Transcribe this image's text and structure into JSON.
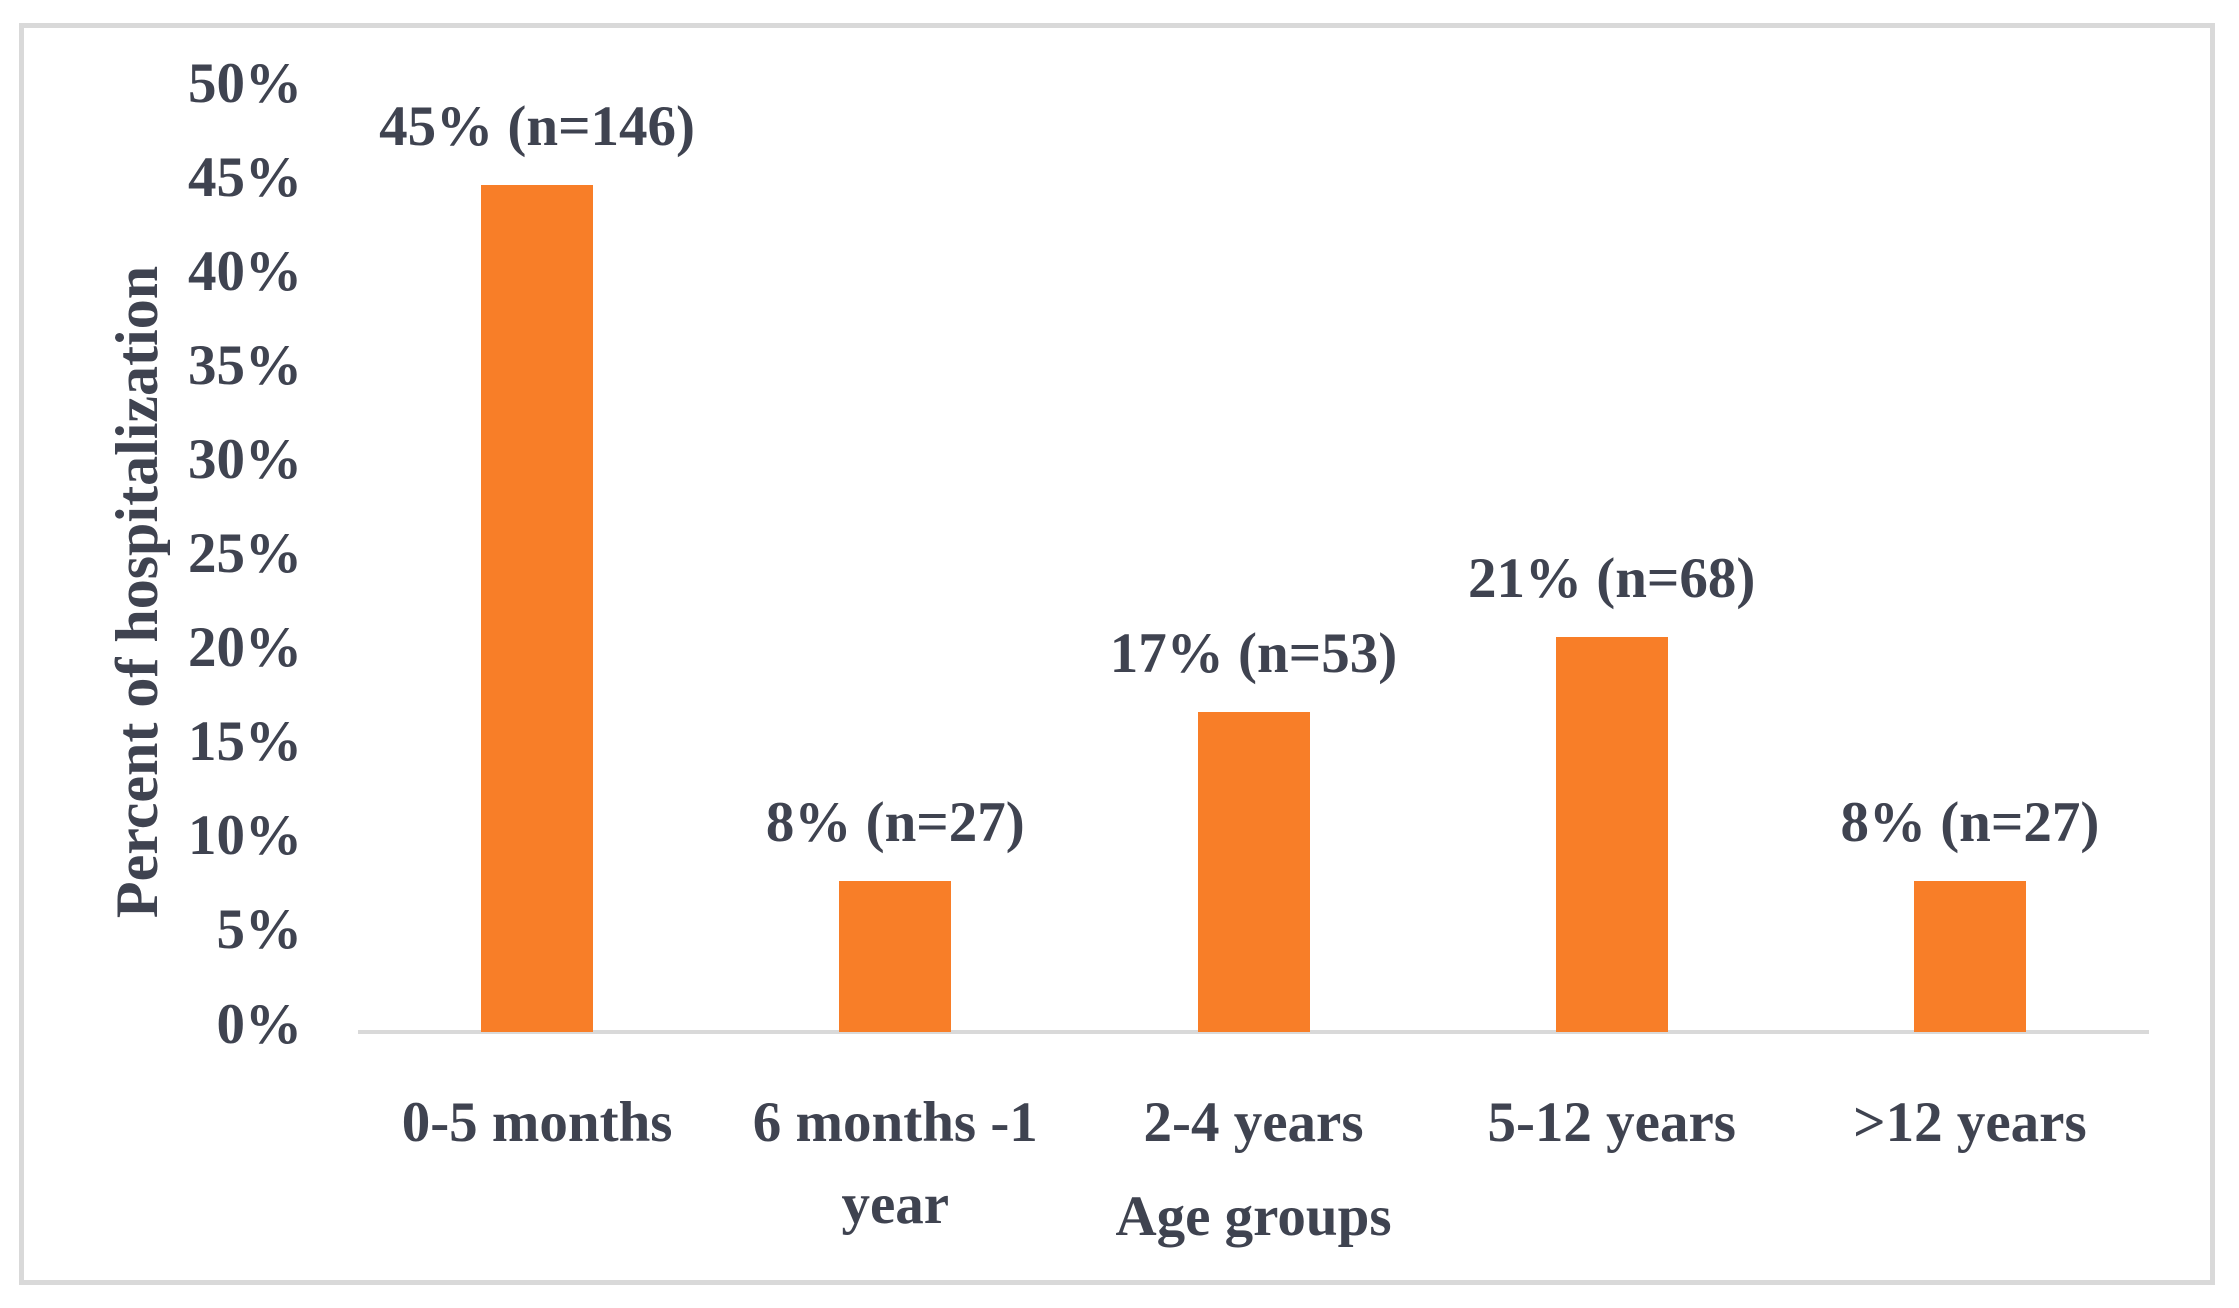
{
  "chart_data": {
    "type": "bar",
    "title": "",
    "xlabel": "Age groups",
    "ylabel": "Percent of hospitalization",
    "categories": [
      "0-5 months",
      "6 months -1 year",
      "2-4 years",
      "5-12 years",
      ">12 years"
    ],
    "values": [
      45,
      8,
      17,
      21,
      8
    ],
    "counts": [
      146,
      27,
      53,
      68,
      27
    ],
    "data_labels": [
      "45% (n=146)",
      "8% (n=27)",
      "17% (n=53)",
      "21% (n=68)",
      "8% (n=27)"
    ],
    "ylim": [
      0,
      50
    ],
    "y_tick_step": 5,
    "y_tick_labels": [
      "0%",
      "5%",
      "10%",
      "15%",
      "20%",
      "25%",
      "30%",
      "35%",
      "40%",
      "45%",
      "50%"
    ],
    "grid": "off",
    "legend": "none",
    "colors": {
      "bar": "#f87e28",
      "axis_line": "#d9d9d9",
      "frame_border": "#d9d9d9",
      "text": "#3f4350"
    }
  }
}
